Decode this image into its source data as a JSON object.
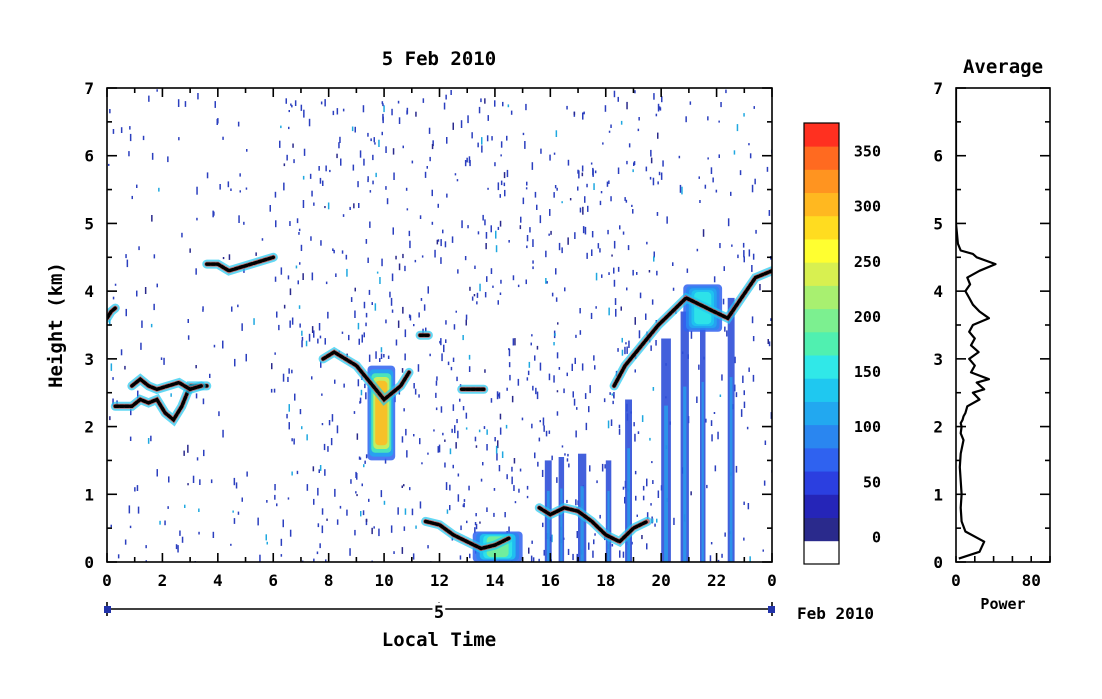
{
  "chart_data": [
    {
      "type": "heatmap",
      "title": "5 Feb 2010",
      "xlabel": "Local Time",
      "ylabel": "Height (km)",
      "xlim": [
        0,
        24
      ],
      "ylim": [
        0,
        7
      ],
      "x_ticks": [
        "0",
        "2",
        "4",
        "6",
        "8",
        "10",
        "12",
        "14",
        "16",
        "18",
        "20",
        "22",
        "0"
      ],
      "y_ticks": [
        "0",
        "1",
        "2",
        "3",
        "4",
        "5",
        "6",
        "7"
      ],
      "date_axis": {
        "day_label": "5",
        "month_label": "Feb 2010"
      },
      "colorbar": {
        "ticks": [
          "0",
          "50",
          "100",
          "150",
          "200",
          "250",
          "300",
          "350"
        ],
        "range": [
          -25,
          375
        ],
        "colors": [
          "#ffffff",
          "#2a2a8c",
          "#2525b8",
          "#2b3fe0",
          "#2f62f0",
          "#2a86f0",
          "#22a8f0",
          "#1fc8f0",
          "#30e8e8",
          "#50f0b0",
          "#7cf090",
          "#a8f070",
          "#d8f050",
          "#ffff30",
          "#ffdc20",
          "#ffb820",
          "#ff9420",
          "#ff6a20",
          "#ff3020"
        ]
      },
      "dense_noise_windows_hours": [
        [
          6.0,
          20.0
        ]
      ],
      "cloud_layers": [
        {
          "x": [
            0.0,
            0.15,
            0.3
          ],
          "y": [
            3.6,
            3.7,
            3.75
          ]
        },
        {
          "x": [
            0.3,
            0.6,
            0.9,
            1.2,
            1.5,
            1.8,
            2.1,
            2.4,
            2.7,
            3.0,
            3.3,
            3.6
          ],
          "y": [
            2.3,
            2.3,
            2.3,
            2.4,
            2.35,
            2.4,
            2.2,
            2.1,
            2.3,
            2.6,
            2.6,
            2.6
          ]
        },
        {
          "x": [
            0.9,
            1.2,
            1.5,
            1.8,
            2.2,
            2.6,
            3.0,
            3.4
          ],
          "y": [
            2.6,
            2.7,
            2.6,
            2.55,
            2.6,
            2.65,
            2.55,
            2.6
          ]
        },
        {
          "x": [
            3.6,
            4.0,
            4.4,
            4.8,
            5.2,
            5.6,
            6.0
          ],
          "y": [
            4.4,
            4.4,
            4.3,
            4.35,
            4.4,
            4.45,
            4.5
          ]
        },
        {
          "x": [
            7.8,
            8.2,
            8.6,
            9.0,
            9.4,
            9.8,
            10.0,
            10.3,
            10.6,
            10.9
          ],
          "y": [
            3.0,
            3.1,
            3.0,
            2.9,
            2.7,
            2.5,
            2.4,
            2.5,
            2.6,
            2.8
          ]
        },
        {
          "x": [
            11.5,
            12.0,
            12.5,
            13.0,
            13.5,
            14.0,
            14.5
          ],
          "y": [
            0.6,
            0.55,
            0.4,
            0.3,
            0.2,
            0.25,
            0.35
          ]
        },
        {
          "x": [
            15.6,
            16.0,
            16.5,
            17.0,
            17.5,
            18.0,
            18.5,
            19.0,
            19.5
          ],
          "y": [
            0.8,
            0.7,
            0.8,
            0.75,
            0.6,
            0.4,
            0.3,
            0.5,
            0.6
          ]
        },
        {
          "x": [
            18.3,
            18.7,
            19.1,
            19.5,
            19.9,
            20.4,
            20.9,
            21.4,
            21.9,
            22.4,
            22.9,
            23.4,
            24.0
          ],
          "y": [
            2.6,
            2.9,
            3.1,
            3.3,
            3.5,
            3.7,
            3.9,
            3.8,
            3.7,
            3.6,
            3.9,
            4.2,
            4.3
          ]
        },
        {
          "x": [
            12.8,
            13.2,
            13.6
          ],
          "y": [
            2.55,
            2.55,
            2.55
          ]
        },
        {
          "x": [
            11.3,
            11.6
          ],
          "y": [
            3.35,
            3.35
          ]
        }
      ],
      "intense_patches": [
        {
          "x": [
            9.4,
            10.4
          ],
          "y": [
            1.5,
            2.9
          ],
          "peak": 360
        },
        {
          "x": [
            13.2,
            15.0
          ],
          "y": [
            0.0,
            0.45
          ],
          "peak": 220
        },
        {
          "x": [
            20.8,
            22.2
          ],
          "y": [
            3.4,
            4.1
          ],
          "peak": 170
        }
      ],
      "rain_shafts": [
        {
          "x": 15.8,
          "width": 0.25,
          "top": 1.5
        },
        {
          "x": 16.3,
          "width": 0.2,
          "top": 1.55
        },
        {
          "x": 17.0,
          "width": 0.3,
          "top": 1.6
        },
        {
          "x": 18.0,
          "width": 0.2,
          "top": 1.5
        },
        {
          "x": 18.7,
          "width": 0.25,
          "top": 2.4
        },
        {
          "x": 20.0,
          "width": 0.35,
          "top": 3.3
        },
        {
          "x": 20.7,
          "width": 0.3,
          "top": 3.7
        },
        {
          "x": 21.4,
          "width": 0.2,
          "top": 3.8
        },
        {
          "x": 22.4,
          "width": 0.25,
          "top": 3.9
        }
      ]
    },
    {
      "type": "line",
      "title": "Average",
      "xlabel": "Power",
      "xlim": [
        0,
        100
      ],
      "ylim": [
        0,
        7
      ],
      "x_ticks": [
        "0",
        "80"
      ],
      "y_ticks": [
        "0",
        "1",
        "2",
        "3",
        "4",
        "5",
        "6",
        "7"
      ],
      "series": [
        {
          "x": [
            3,
            25,
            30,
            10,
            6,
            5,
            6,
            5,
            4,
            5,
            8,
            5,
            6,
            5,
            7,
            8,
            10,
            12,
            25,
            18,
            30,
            22,
            35,
            16,
            20,
            14,
            24,
            16,
            20,
            14,
            18,
            35,
            25,
            18,
            14,
            10,
            15,
            12,
            25,
            42,
            22,
            18,
            5,
            2,
            0,
            0
          ],
          "y": [
            0.05,
            0.15,
            0.3,
            0.45,
            0.6,
            0.8,
            1.0,
            1.2,
            1.4,
            1.6,
            1.8,
            1.9,
            2.0,
            2.05,
            2.1,
            2.15,
            2.2,
            2.3,
            2.4,
            2.5,
            2.55,
            2.65,
            2.7,
            2.8,
            2.9,
            3.0,
            3.1,
            3.2,
            3.3,
            3.4,
            3.5,
            3.6,
            3.7,
            3.8,
            3.9,
            4.0,
            4.1,
            4.2,
            4.3,
            4.4,
            4.5,
            4.55,
            4.6,
            4.7,
            5.0,
            7.0
          ]
        }
      ]
    }
  ]
}
